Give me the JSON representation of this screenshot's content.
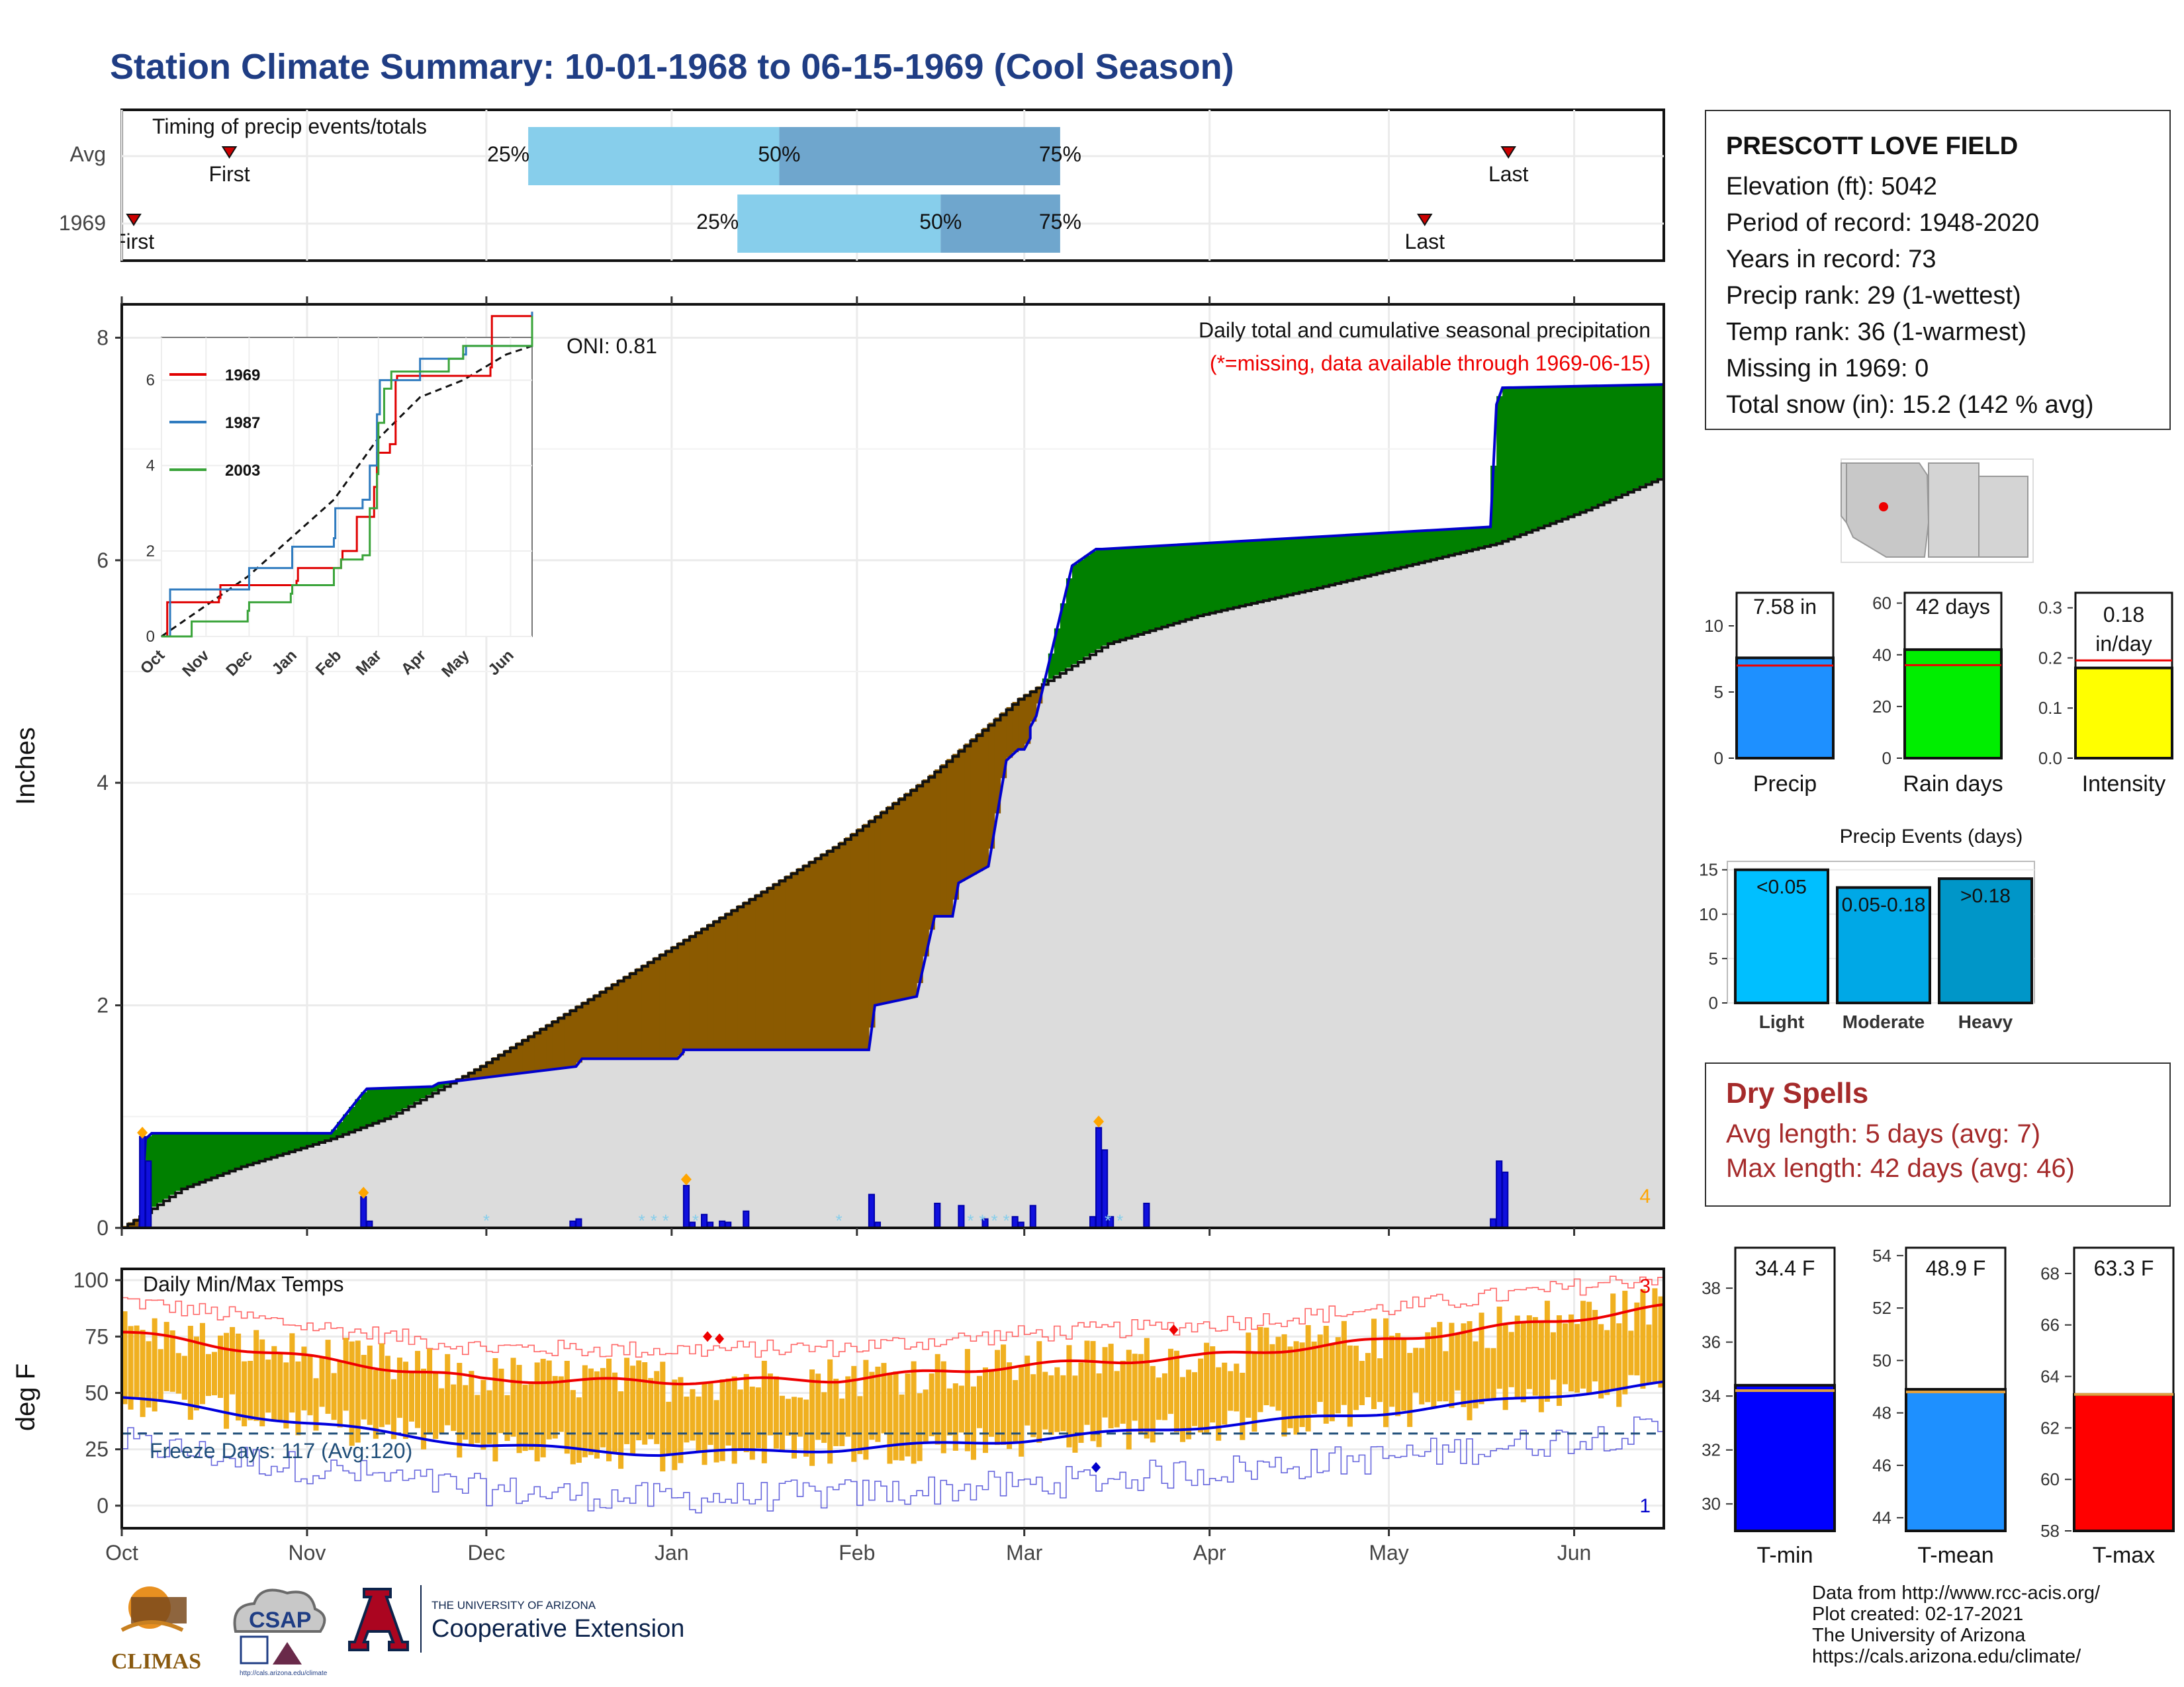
{
  "title": "Station Climate Summary: 10-01-1968 to 06-15-1969 (Cool Season)",
  "station": {
    "name": "PRESCOTT LOVE FIELD",
    "lines": [
      "Elevation (ft): 5042",
      "Period of record: 1948-2020",
      "Years in record: 73",
      "Precip rank: 29 (1-wettest)",
      "Temp rank: 36 (1-warmest)",
      "Missing in 1969: 0",
      "Total snow (in): 15.2 (142 % avg)"
    ]
  },
  "timing": {
    "title": "Timing of precip events/totals",
    "rows": [
      {
        "label": "Avg",
        "first": "First",
        "first_day": 18,
        "last": "Last",
        "last_day": 232,
        "p25": 68,
        "p50": 110,
        "p75": 157
      },
      {
        "label": "1969",
        "first": "First",
        "first_day": 2,
        "last": "Last",
        "last_day": 218,
        "p25": 103,
        "p50": 137,
        "p75": 157
      }
    ],
    "pct_labels": [
      "25%",
      "50%",
      "75%"
    ],
    "colors": {
      "light": "#87ceeb",
      "dark": "#6fa6cd"
    }
  },
  "precip_panel": {
    "ylabel": "Inches",
    "yticks": [
      0,
      2,
      4,
      6,
      8
    ],
    "ylim": [
      0,
      8.3
    ],
    "note1": "Daily total and cumulative seasonal precipitation",
    "note2": "(*=missing, data available through 1969-06-15)",
    "oni": "ONI: 0.81",
    "max_daily_label": "4",
    "colors": {
      "above": "#008000",
      "below": "#8b5a00",
      "normal_fill": "#dcdcdc",
      "line": "#0000cd",
      "bar": "#1010dd",
      "snow": "#87ceeb",
      "marker": "#ffa500"
    }
  },
  "month_labels": [
    "Oct",
    "Nov",
    "Dec",
    "Jan",
    "Feb",
    "Mar",
    "Apr",
    "May",
    "Jun"
  ],
  "month_days": [
    0,
    31,
    61,
    92,
    123,
    151,
    182,
    212,
    243
  ],
  "inset": {
    "legend": [
      {
        "name": "1969",
        "color": "#e00000"
      },
      {
        "name": "1987",
        "color": "#2f7bbf"
      },
      {
        "name": "2003",
        "color": "#3aa43a"
      }
    ],
    "yticks": [
      0,
      2,
      4,
      6
    ],
    "months": [
      "Oct",
      "Nov",
      "Dec",
      "Jan",
      "Feb",
      "Mar",
      "Apr",
      "May",
      "Jun"
    ]
  },
  "summary_bars": [
    {
      "label": "Precip",
      "value": 7.58,
      "value_label": "7.58 in",
      "avg": 7.0,
      "yticks": [
        0,
        5,
        10
      ],
      "ymax": 12.5,
      "color": "#1e90ff"
    },
    {
      "label": "Rain days",
      "value": 42,
      "value_label": "42 days",
      "avg": 36,
      "yticks": [
        0,
        20,
        40,
        60
      ],
      "ymax": 64,
      "color": "#00ee00"
    },
    {
      "label": "Intensity",
      "value": 0.18,
      "value_label": "0.18 in/day",
      "value_label_1": "0.18",
      "value_label_2": "in/day",
      "avg": 0.195,
      "yticks": [
        "0.0",
        "0.1",
        "0.2",
        "0.3"
      ],
      "ymax": 0.33,
      "color": "#ffff00"
    }
  ],
  "events": {
    "title": "Precip Events (days)",
    "yticks": [
      0,
      5,
      10,
      15
    ],
    "ymax": 15.5,
    "bars": [
      {
        "label": "Light",
        "value": 15,
        "text": "<0.05",
        "color": "#00bfff"
      },
      {
        "label": "Moderate",
        "value": 13,
        "text": "0.05-0.18",
        "color": "#00a8e6"
      },
      {
        "label": "Heavy",
        "value": 14,
        "text": ">0.18",
        "color": "#0096c8"
      }
    ]
  },
  "dry_spells": {
    "title": "Dry Spells",
    "avg": "Avg length: 5 days (avg: 7)",
    "max": "Max length: 42 days (avg: 46)"
  },
  "temp_panel": {
    "title": "Daily Min/Max Temps",
    "ylabel": "deg F",
    "yticks": [
      0,
      25,
      50,
      75,
      100
    ],
    "ylim": [
      -10,
      105
    ],
    "freeze": "Freeze Days: 117 (Avg:120)",
    "freeze_line": 32,
    "label_top": "3",
    "label_bottom": "1",
    "colors": {
      "bar": "#f0b020",
      "max_avg": "#ee0000",
      "min_avg": "#0000dd",
      "max_rec": "#ff6666",
      "min_rec": "#6666dd",
      "freeze": "#1f4e79"
    }
  },
  "temp_bars": [
    {
      "label": "T-min",
      "value": 34.4,
      "value_label": "34.4 F",
      "yticks": [
        30,
        32,
        34,
        36,
        38
      ],
      "ymin": 29,
      "ymax": 39.5,
      "avg": 34.2,
      "color": "#0000ff"
    },
    {
      "label": "T-mean",
      "value": 48.9,
      "value_label": "48.9 F",
      "yticks": [
        44,
        46,
        48,
        50,
        52,
        54
      ],
      "ymin": 43.5,
      "ymax": 54.3,
      "avg": 48.8,
      "color": "#1e90ff"
    },
    {
      "label": "T-max",
      "value": 63.3,
      "value_label": "63.3 F",
      "yticks": [
        58,
        60,
        62,
        64,
        66,
        68
      ],
      "ymin": 58,
      "ymax": 69,
      "avg": 63.3,
      "color": "#ff0000"
    }
  ],
  "credits": [
    "Data from http://www.rcc-acis.org/",
    "Plot created: 02-17-2021",
    "The University of Arizona",
    "https://cals.arizona.edu/climate/"
  ],
  "logos": {
    "climas": "CLIMAS",
    "csap": "CSAP",
    "csap_url": "http://cals.arizona.edu/climate",
    "ua_small": "THE UNIVERSITY OF ARIZONA",
    "ua_big": "Cooperative Extension"
  },
  "chart_data": [
    {
      "type": "area",
      "title": "Daily total and cumulative seasonal precipitation",
      "ylabel": "Inches",
      "ylim": [
        0,
        8.3
      ],
      "series": [
        {
          "name": "1969",
          "x_days": [
            0,
            3,
            4,
            5,
            35,
            40,
            41,
            52,
            53,
            76,
            77,
            93,
            94,
            94,
            125,
            126,
            133,
            136,
            139,
            140,
            145,
            148,
            150,
            151,
            152,
            152,
            153,
            159,
            163,
            164,
            229,
            230,
            231,
            231,
            258
          ],
          "y": [
            0,
            0,
            0.8,
            0.85,
            0.85,
            1.19,
            1.25,
            1.27,
            1.3,
            1.45,
            1.52,
            1.52,
            1.58,
            1.6,
            1.6,
            2.0,
            2.08,
            2.8,
            2.8,
            3.1,
            3.25,
            4.2,
            4.3,
            4.3,
            4.4,
            4.5,
            4.6,
            5.95,
            6.1,
            6.1,
            6.3,
            7.4,
            7.55,
            7.55,
            7.58
          ]
        }
      ]
    },
    {
      "type": "bar",
      "title": "Daily precipitation",
      "x_days": [
        3,
        4,
        40,
        41,
        75,
        76,
        94,
        95,
        97,
        98,
        100,
        101,
        104,
        125,
        126,
        136,
        140,
        144,
        149,
        150,
        152,
        162,
        163,
        164,
        165,
        171,
        229,
        230,
        231
      ],
      "values": [
        0.82,
        0.6,
        0.28,
        0.06,
        0.06,
        0.08,
        0.38,
        0.05,
        0.12,
        0.05,
        0.06,
        0.05,
        0.15,
        0.3,
        0.05,
        0.22,
        0.2,
        0.08,
        0.1,
        0.05,
        0.2,
        0.1,
        0.9,
        0.7,
        0.1,
        0.22,
        0.08,
        0.6,
        0.5
      ]
    },
    {
      "type": "line",
      "title": "Daily Min/Max Temps",
      "ylabel": "deg F",
      "series": [
        {
          "name": "Avg max",
          "x_days": [
            0,
            30,
            60,
            90,
            120,
            150,
            180,
            210,
            240,
            258
          ],
          "y": [
            77,
            66,
            56,
            55,
            56,
            62,
            66,
            73,
            82,
            88
          ]
        },
        {
          "name": "Avg min",
          "x_days": [
            0,
            30,
            60,
            90,
            120,
            150,
            180,
            210,
            240,
            258
          ],
          "y": [
            48,
            37,
            27,
            23,
            25,
            29,
            35,
            41,
            49,
            54
          ]
        }
      ]
    }
  ]
}
